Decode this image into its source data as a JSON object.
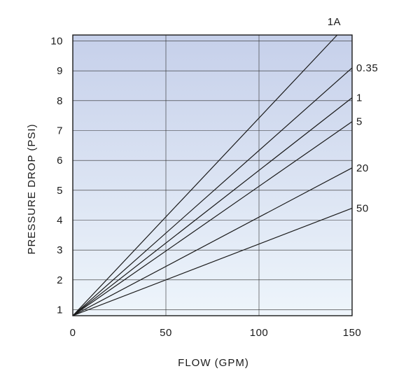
{
  "chart_data": {
    "type": "line",
    "xlabel": "FLOW (GPM)",
    "ylabel": "PRESSURE DROP (PSI)",
    "xlim": [
      0,
      150
    ],
    "ylim": [
      0.8,
      10.2
    ],
    "x_ticks": [
      0,
      50,
      100,
      150
    ],
    "y_ticks": [
      1,
      2,
      3,
      4,
      5,
      6,
      7,
      8,
      9,
      10
    ],
    "grid": true,
    "series": [
      {
        "name": "1A",
        "x": [
          0,
          142
        ],
        "y": [
          0.8,
          10.2
        ]
      },
      {
        "name": "0.35",
        "x": [
          0,
          150
        ],
        "y": [
          0.8,
          9.1
        ]
      },
      {
        "name": "1",
        "x": [
          0,
          150
        ],
        "y": [
          0.8,
          8.1
        ]
      },
      {
        "name": "5",
        "x": [
          0,
          150
        ],
        "y": [
          0.8,
          7.3
        ]
      },
      {
        "name": "20",
        "x": [
          0,
          150
        ],
        "y": [
          0.8,
          5.75
        ]
      },
      {
        "name": "50",
        "x": [
          0,
          150
        ],
        "y": [
          0.8,
          4.4
        ]
      }
    ],
    "colors": {
      "background_top": "#c6d0ea",
      "background_bottom": "#eef5fb",
      "lines": "#1a1a1a"
    }
  }
}
